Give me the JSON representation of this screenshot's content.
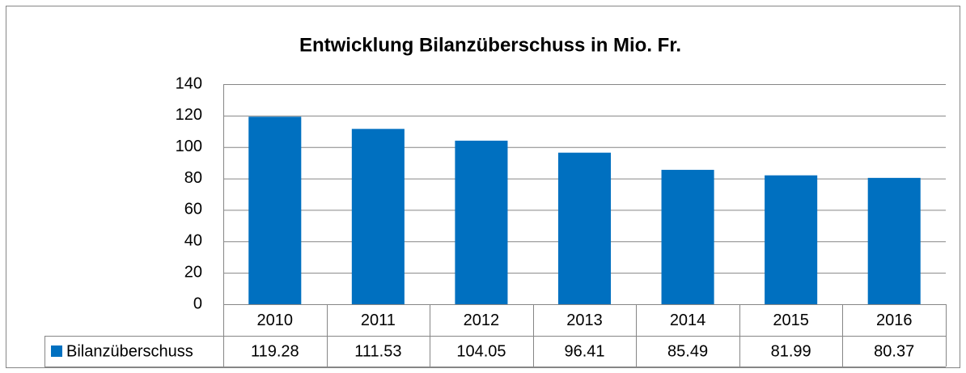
{
  "chart_data": {
    "type": "bar",
    "title": "Entwicklung Bilanzüberschuss in Mio. Fr.",
    "categories": [
      "2010",
      "2011",
      "2012",
      "2013",
      "2014",
      "2015",
      "2016"
    ],
    "series": [
      {
        "name": "Bilanzüberschuss",
        "color": "#0070c0",
        "values": [
          119.28,
          111.53,
          104.05,
          96.41,
          85.49,
          81.99,
          80.37
        ]
      }
    ],
    "ylim": [
      0,
      140
    ],
    "yticks": [
      0,
      20,
      40,
      60,
      80,
      100,
      120,
      140
    ],
    "grid": true,
    "data_table": true
  }
}
